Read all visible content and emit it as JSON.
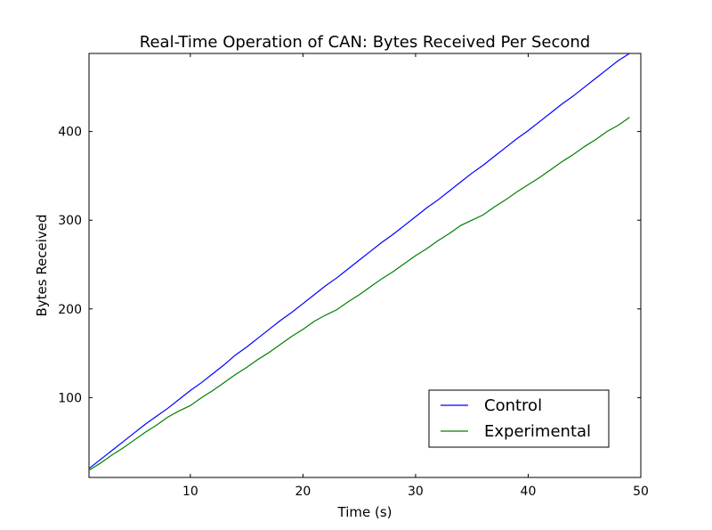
{
  "chart_data": {
    "type": "line",
    "title": "Real-Time Operation of CAN: Bytes Received Per Second",
    "xlabel": "Time (s)",
    "ylabel": "Bytes Received",
    "xlim": [
      1,
      50
    ],
    "ylim": [
      10,
      488
    ],
    "xticks": [
      10,
      20,
      30,
      40,
      50
    ],
    "yticks": [
      100,
      200,
      300,
      400
    ],
    "legend_position": "lower-right",
    "grid": false,
    "series": [
      {
        "name": "Control",
        "color": "#0000ff",
        "x": [
          1,
          2,
          3,
          4,
          5,
          6,
          7,
          8,
          9,
          10,
          11,
          12,
          13,
          14,
          15,
          16,
          17,
          18,
          19,
          20,
          21,
          22,
          23,
          24,
          25,
          26,
          27,
          28,
          29,
          30,
          31,
          32,
          33,
          34,
          35,
          36,
          37,
          38,
          39,
          40,
          41,
          42,
          43,
          44,
          45,
          46,
          47,
          48,
          49
        ],
        "y": [
          20,
          30,
          40,
          50,
          60,
          70,
          79,
          88,
          98,
          108,
          117,
          127,
          137,
          148,
          157,
          167,
          177,
          187,
          196,
          206,
          216,
          226,
          235,
          245,
          255,
          265,
          275,
          284,
          294,
          304,
          314,
          323,
          333,
          343,
          353,
          362,
          372,
          382,
          392,
          401,
          411,
          421,
          431,
          440,
          450,
          460,
          470,
          480,
          490
        ]
      },
      {
        "name": "Experimental",
        "color": "#008000",
        "x": [
          1,
          2,
          3,
          4,
          5,
          6,
          7,
          8,
          9,
          10,
          11,
          12,
          13,
          14,
          15,
          16,
          17,
          18,
          19,
          20,
          21,
          22,
          23,
          24,
          25,
          26,
          27,
          28,
          29,
          30,
          31,
          32,
          33,
          34,
          35,
          36,
          37,
          38,
          39,
          40,
          41,
          42,
          43,
          44,
          45,
          46,
          47,
          48,
          49
        ],
        "y": [
          18,
          26,
          35,
          43,
          52,
          61,
          69,
          78,
          85,
          91,
          100,
          108,
          117,
          126,
          134,
          143,
          151,
          160,
          169,
          177,
          186,
          193,
          199,
          208,
          216,
          225,
          234,
          242,
          251,
          260,
          268,
          277,
          285,
          294,
          300,
          306,
          315,
          323,
          332,
          340,
          348,
          357,
          366,
          374,
          383,
          391,
          400,
          407,
          416
        ]
      }
    ]
  }
}
